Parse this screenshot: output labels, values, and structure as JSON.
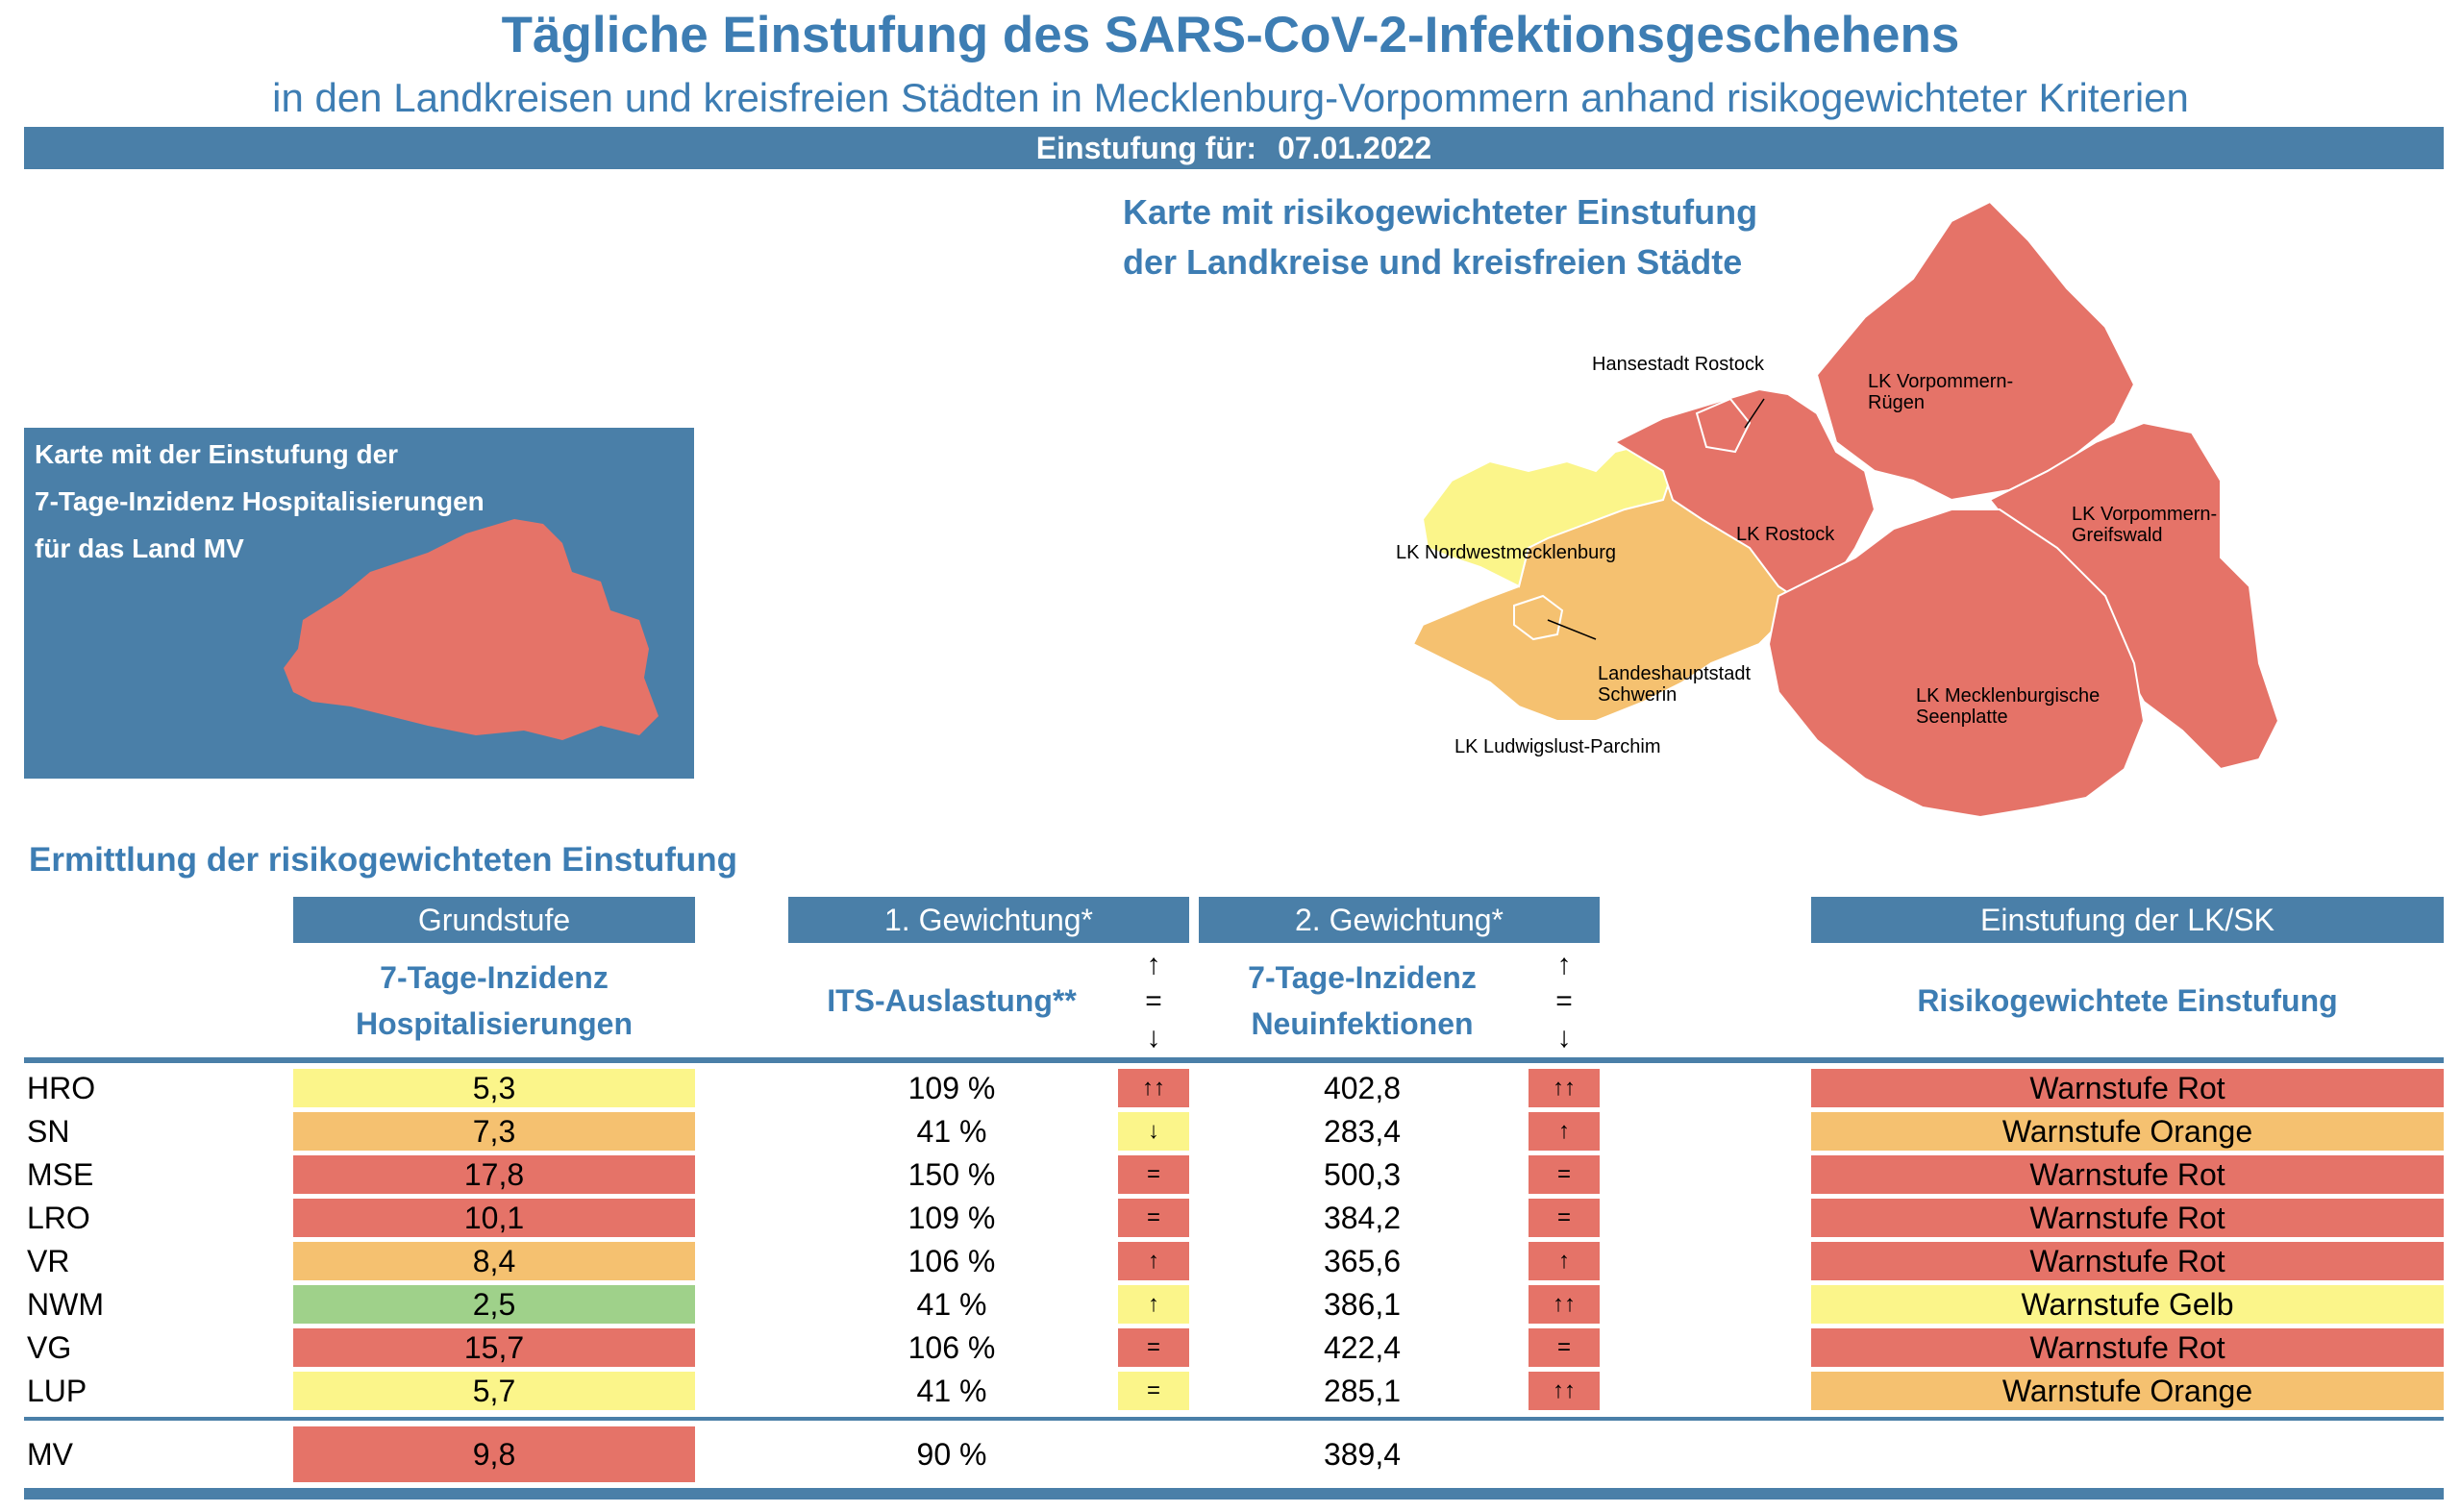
{
  "header": {
    "title": "Tägliche Einstufung des SARS-CoV-2-Infektionsgeschehens",
    "subtitle": "in den Landkreisen und kreisfreien Städten in Mecklenburg-Vorpommern anhand risikogewichteter Kriterien",
    "date_label": "Einstufung für:",
    "date_value": "07.01.2022"
  },
  "map": {
    "title_line1": "Karte mit risikogewichteter Einstufung",
    "title_line2": "der Landkreise und kreisfreien Städte",
    "labels": {
      "hro": "Hansestadt Rostock",
      "vr1": "LK Vorpommern-",
      "vr2": "Rügen",
      "lro": "LK Rostock",
      "vg1": "LK Vorpommern-",
      "vg2": "Greifswald",
      "nwm": "LK Nordwestmecklenburg",
      "sn1": "Landeshauptstadt",
      "sn2": "Schwerin",
      "mse1": "LK Mecklenburgische",
      "mse2": "Seenplatte",
      "lup": "LK Ludwigslust-Parchim"
    }
  },
  "mv_box": {
    "line1": "Karte mit der Einstufung der",
    "line2": "7-Tage-Inzidenz Hospitalisierungen",
    "line3": "für das Land MV"
  },
  "section_title": "Ermittlung der risikogewichteten Einstufung",
  "table": {
    "headers": {
      "grundstufe": "Grundstufe",
      "gew1": "1. Gewichtung*",
      "gew2": "2. Gewichtung*",
      "einstufung": "Einstufung der LK/SK"
    },
    "subheaders": {
      "hosp1": "7-Tage-Inzidenz",
      "hosp2": "Hospitalisierungen",
      "its": "ITS-Auslastung**",
      "neu1": "7-Tage-Inzidenz",
      "neu2": "Neuinfektionen",
      "risk": "Risikogewichtete Einstufung"
    },
    "legend_arrows": [
      "↑",
      "=",
      "↓"
    ],
    "rows": [
      {
        "code": "HRO",
        "hosp": "5,3",
        "hosp_color": "#fbf58a",
        "its": "109 %",
        "its_ind": "↑↑",
        "its_color": "#e57368",
        "inz": "402,8",
        "inz_ind": "↑↑",
        "inz_color": "#e57368",
        "stufe": "Warnstufe Rot",
        "stufe_color": "#e57368"
      },
      {
        "code": "SN",
        "hosp": "7,3",
        "hosp_color": "#f5c170",
        "its": "41 %",
        "its_ind": "↓",
        "its_color": "#fbf58a",
        "inz": "283,4",
        "inz_ind": "↑",
        "inz_color": "#e57368",
        "stufe": "Warnstufe Orange",
        "stufe_color": "#f5c170"
      },
      {
        "code": "MSE",
        "hosp": "17,8",
        "hosp_color": "#e57368",
        "its": "150 %",
        "its_ind": "=",
        "its_color": "#e57368",
        "inz": "500,3",
        "inz_ind": "=",
        "inz_color": "#e57368",
        "stufe": "Warnstufe Rot",
        "stufe_color": "#e57368"
      },
      {
        "code": "LRO",
        "hosp": "10,1",
        "hosp_color": "#e57368",
        "its": "109 %",
        "its_ind": "=",
        "its_color": "#e57368",
        "inz": "384,2",
        "inz_ind": "=",
        "inz_color": "#e57368",
        "stufe": "Warnstufe Rot",
        "stufe_color": "#e57368"
      },
      {
        "code": "VR",
        "hosp": "8,4",
        "hosp_color": "#f5c170",
        "its": "106 %",
        "its_ind": "↑",
        "its_color": "#e57368",
        "inz": "365,6",
        "inz_ind": "↑",
        "inz_color": "#e57368",
        "stufe": "Warnstufe Rot",
        "stufe_color": "#e57368"
      },
      {
        "code": "NWM",
        "hosp": "2,5",
        "hosp_color": "#9fd18a",
        "its": "41 %",
        "its_ind": "↑",
        "its_color": "#fbf58a",
        "inz": "386,1",
        "inz_ind": "↑↑",
        "inz_color": "#e57368",
        "stufe": "Warnstufe Gelb",
        "stufe_color": "#fbf58a"
      },
      {
        "code": "VG",
        "hosp": "15,7",
        "hosp_color": "#e57368",
        "its": "106 %",
        "its_ind": "=",
        "its_color": "#e57368",
        "inz": "422,4",
        "inz_ind": "=",
        "inz_color": "#e57368",
        "stufe": "Warnstufe Rot",
        "stufe_color": "#e57368"
      },
      {
        "code": "LUP",
        "hosp": "5,7",
        "hosp_color": "#fbf58a",
        "its": "41 %",
        "its_ind": "=",
        "its_color": "#fbf58a",
        "inz": "285,1",
        "inz_ind": "↑↑",
        "inz_color": "#e57368",
        "stufe": "Warnstufe Orange",
        "stufe_color": "#f5c170"
      }
    ],
    "total": {
      "code": "MV",
      "hosp": "9,8",
      "hosp_color": "#e57368",
      "its": "90 %",
      "inz": "389,4"
    }
  },
  "colors": {
    "accent": "#4a7fa8",
    "title": "#3d7db3",
    "red": "#e57368",
    "orange": "#f5c170",
    "yellow": "#fbf58a",
    "green": "#9fd18a"
  }
}
